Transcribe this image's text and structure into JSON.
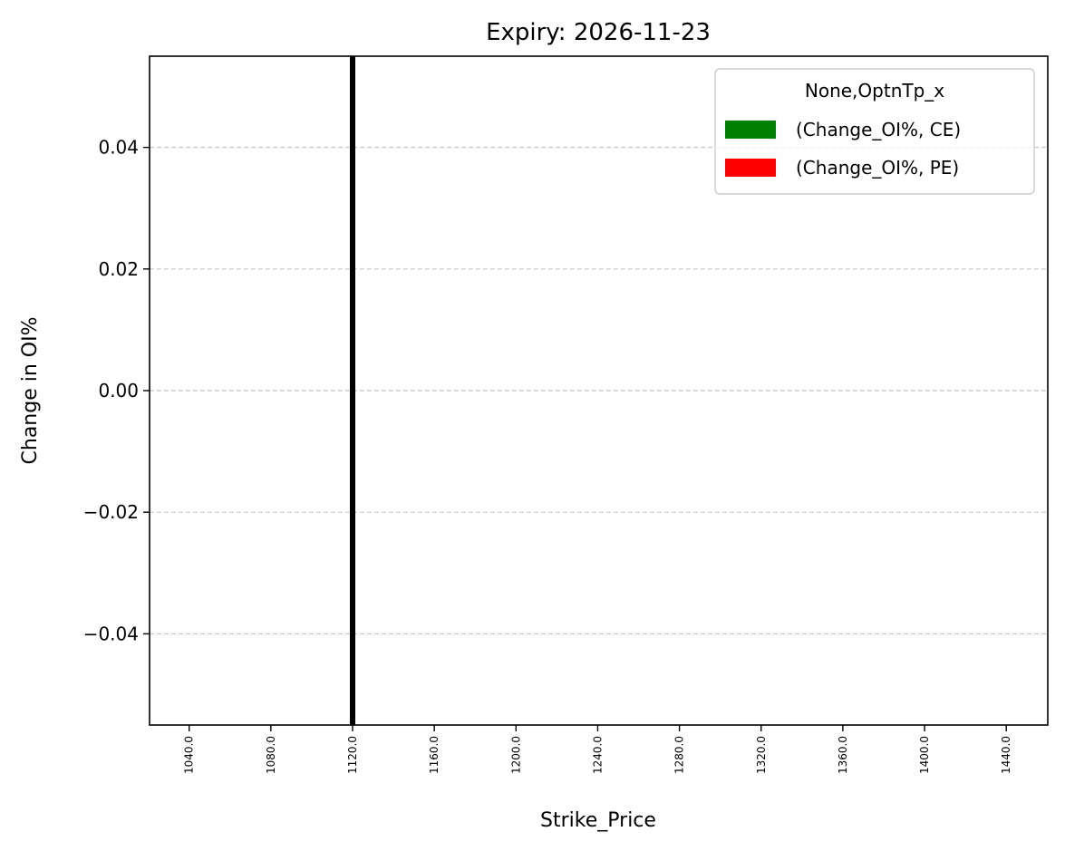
{
  "chart_data": {
    "type": "bar",
    "title": "Expiry: 2026-11-23",
    "xlabel": "Strike_Price",
    "ylabel": "Change in OI%",
    "categories": [
      "1040.0",
      "1080.0",
      "1120.0",
      "1160.0",
      "1200.0",
      "1240.0",
      "1280.0",
      "1320.0",
      "1360.0",
      "1400.0",
      "1440.0"
    ],
    "yticks": [
      0.04,
      0.02,
      0.0,
      -0.02,
      -0.04
    ],
    "ytick_labels": [
      "0.04",
      "0.02",
      "0.00",
      "−0.02",
      "−0.04"
    ],
    "ylim": [
      -0.055,
      0.055
    ],
    "series": [
      {
        "name": "(Change_OI%, CE)",
        "color": "#008000",
        "values": [
          0,
          0,
          0,
          0,
          0,
          0,
          0,
          0,
          0,
          0,
          0
        ]
      },
      {
        "name": "(Change_OI%, PE)",
        "color": "#ff0000",
        "values": [
          0,
          0,
          0,
          0,
          0,
          0,
          0,
          0,
          0,
          0,
          0
        ]
      }
    ],
    "legend": {
      "title": "None,OptnTp_x",
      "position": "top-right"
    },
    "vline": {
      "x": "1120.0",
      "color": "#000000"
    },
    "grid": {
      "y": true,
      "x": false,
      "style": "dashed"
    }
  }
}
